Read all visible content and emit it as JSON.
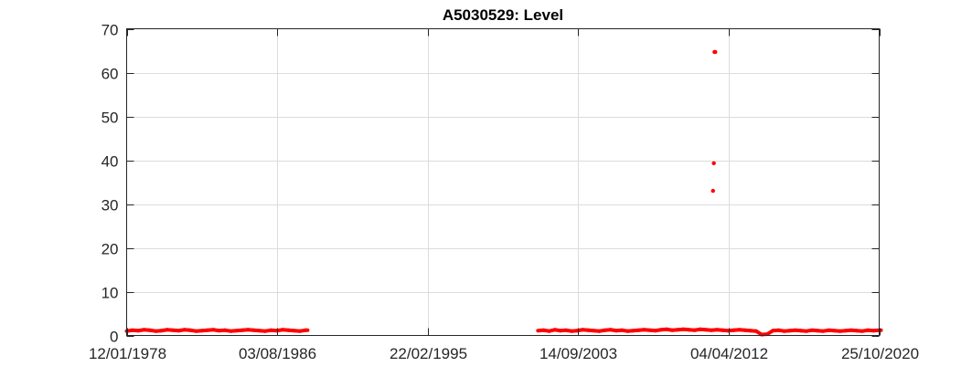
{
  "chart_data": {
    "type": "scatter",
    "title": "A5030529: Level",
    "xlabel": "",
    "ylabel": "",
    "x_ticks": [
      "12/01/1978",
      "03/08/1986",
      "22/02/1995",
      "14/09/2003",
      "04/04/2012",
      "25/10/2020"
    ],
    "xlim": [
      "12/01/1978",
      "25/10/2020"
    ],
    "ylim": [
      0,
      70
    ],
    "y_ticks": [
      0,
      10,
      20,
      30,
      40,
      50,
      60,
      70
    ],
    "grid": true,
    "marker_color": "#ff0000",
    "series": [
      {
        "segments": [
          {
            "start": "12/01/1978",
            "end": "20/03/1988",
            "values": [
              1.0,
              1.2,
              1.1,
              1.3,
              1.2,
              1.0,
              1.1,
              1.3,
              1.2,
              1.1,
              1.3,
              1.2,
              1.0,
              1.1,
              1.2,
              1.3,
              1.1,
              1.2,
              1.0,
              1.1,
              1.2,
              1.3,
              1.2,
              1.1,
              1.0,
              1.2,
              1.1,
              1.3,
              1.2,
              1.1,
              1.0,
              1.2
            ]
          },
          {
            "start": "01/06/2001",
            "end": "25/10/2020",
            "values": [
              1.1,
              1.2,
              1.0,
              1.3,
              1.1,
              1.2,
              1.0,
              1.1,
              1.3,
              1.2,
              1.1,
              1.0,
              1.2,
              1.3,
              1.1,
              1.2,
              1.0,
              1.1,
              1.2,
              1.3,
              1.2,
              1.1,
              1.3,
              1.4,
              1.2,
              1.3,
              1.4,
              1.3,
              1.2,
              1.4,
              1.3,
              1.2,
              1.3,
              1.2,
              1.1,
              1.2,
              1.3,
              1.2,
              1.1,
              1.0,
              0.2,
              0.3,
              1.1,
              1.2,
              1.0,
              1.1,
              1.2,
              1.1,
              1.0,
              1.2,
              1.1,
              1.0,
              1.2,
              1.1,
              1.0,
              1.1,
              1.2,
              1.1,
              1.0,
              1.2,
              1.1,
              1.2
            ]
          }
        ],
        "outliers": [
          {
            "x": "15/06/2011",
            "y": 64.7
          },
          {
            "x": "01/07/2011",
            "y": 64.7
          },
          {
            "x": "01/06/2011",
            "y": 39.3
          },
          {
            "x": "15/05/2011",
            "y": 33.0
          }
        ]
      }
    ]
  }
}
